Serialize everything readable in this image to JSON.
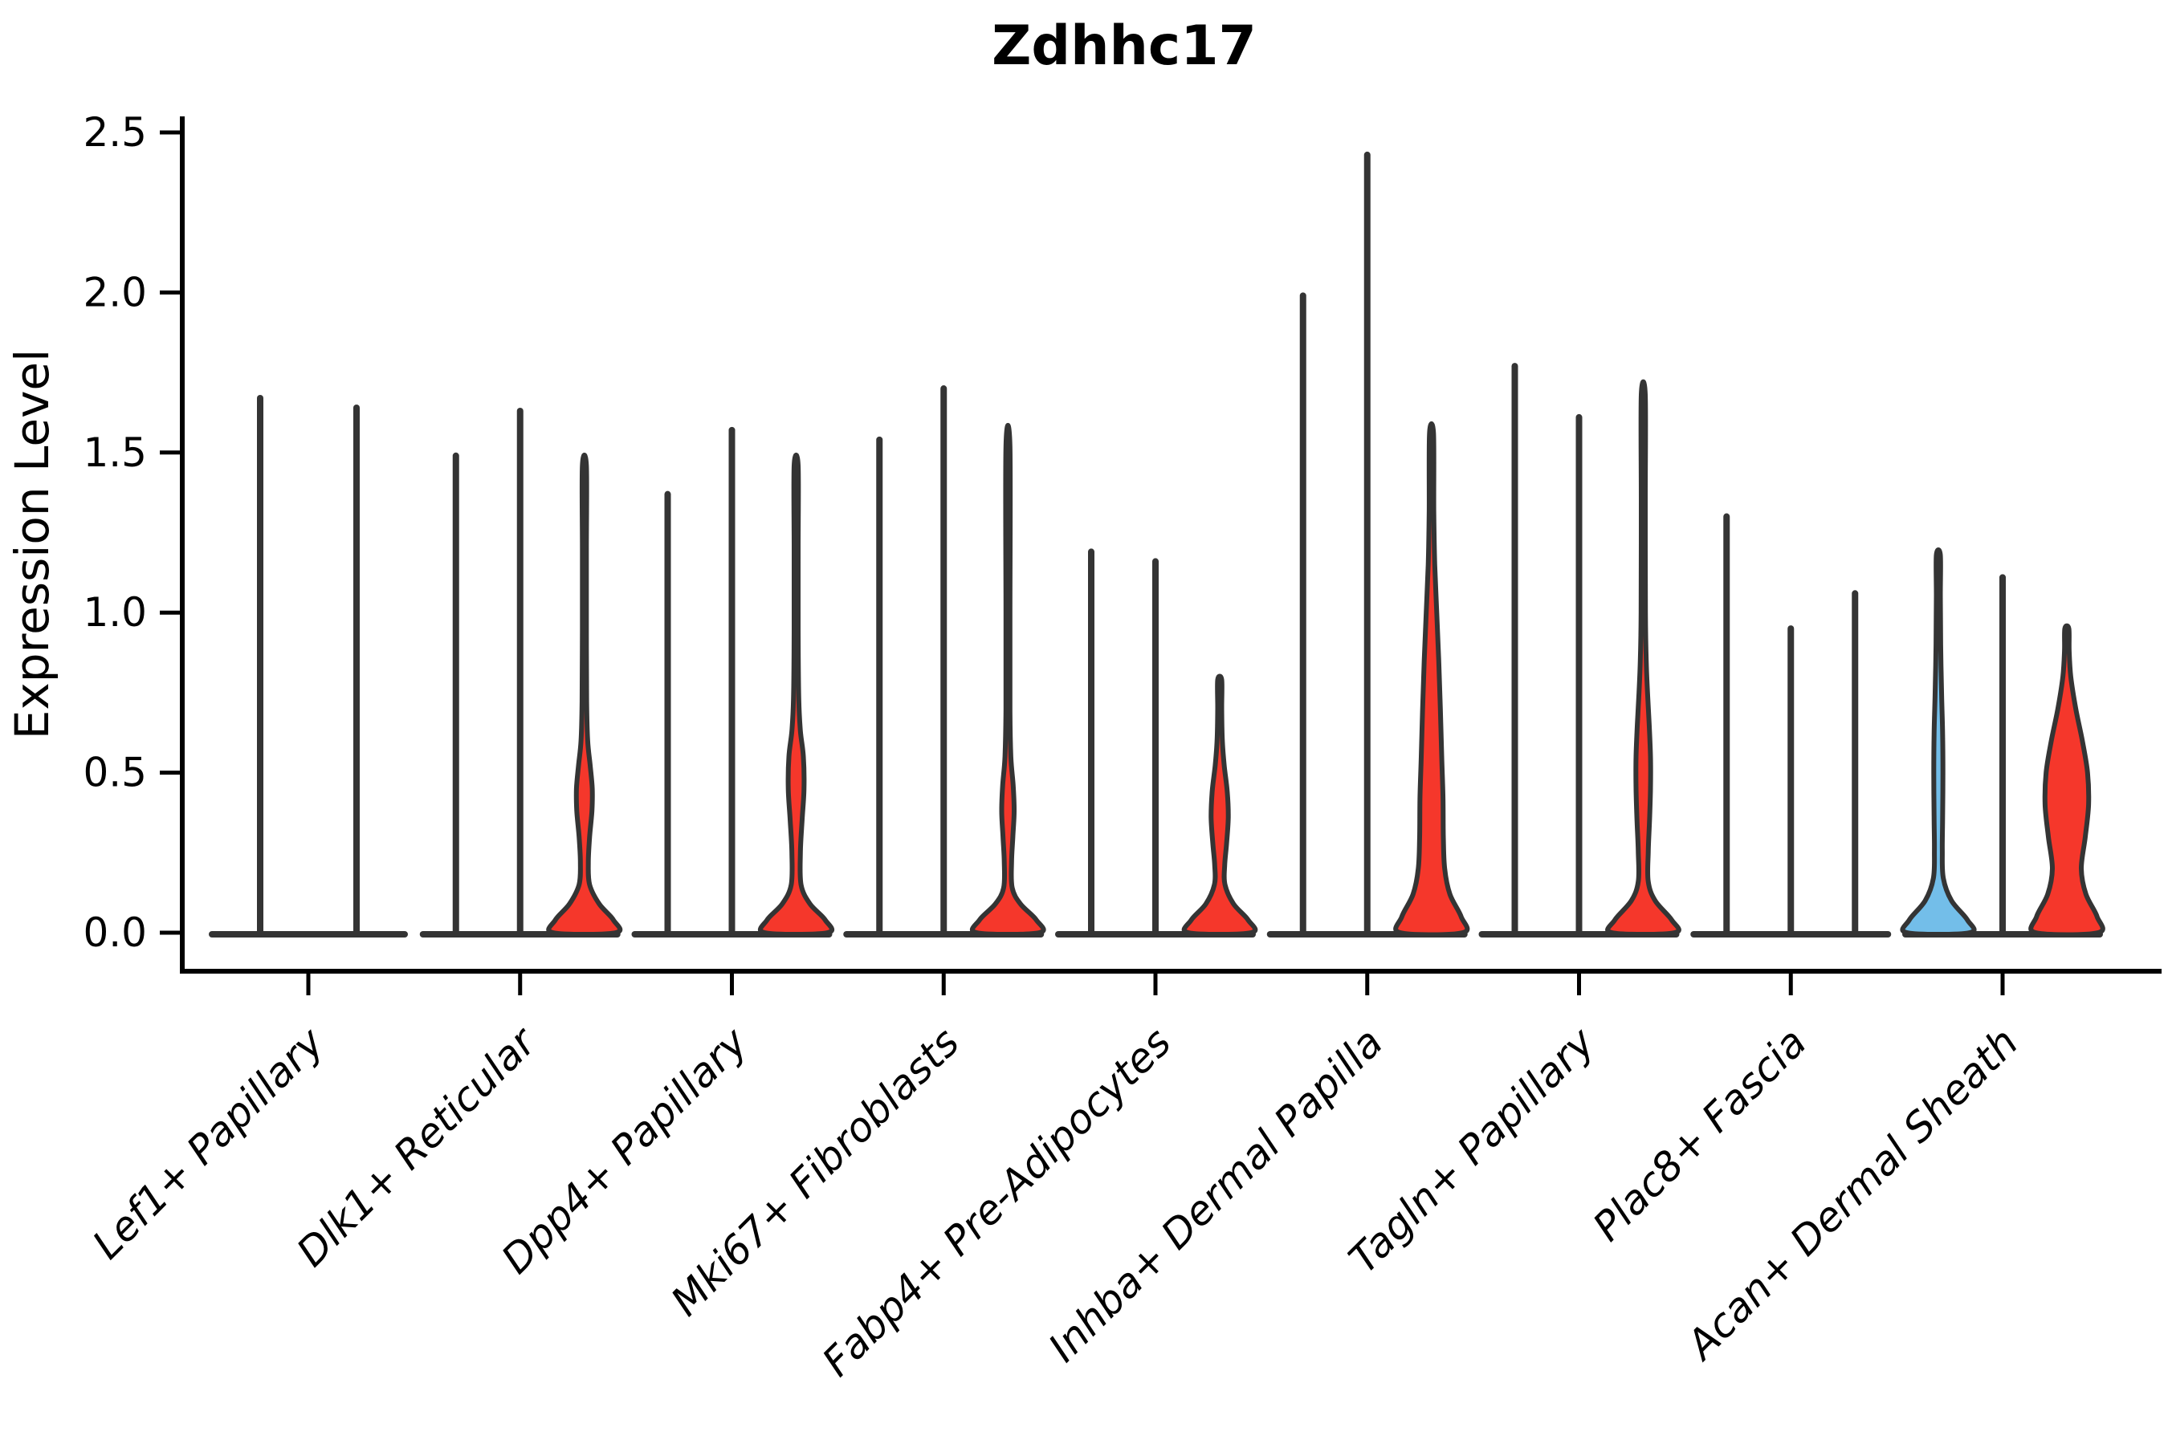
{
  "chart_data": {
    "type": "violin",
    "title": "Zdhhc17",
    "xlabel": "",
    "ylabel": "Expression Level",
    "ylim": [
      0,
      2.5
    ],
    "yticks": [
      0.0,
      0.5,
      1.0,
      1.5,
      2.0,
      2.5
    ],
    "grid": false,
    "legend": "none",
    "x_tick_rotation": 45,
    "colors": {
      "red_fill": "#f5372b",
      "blue_fill": "#73bee9",
      "edge": "#343434",
      "axis": "#000000",
      "background": "#ffffff"
    },
    "categories": [
      {
        "label": "Lef1+ Papillary",
        "violins": [
          {
            "style": "line",
            "max": 1.67
          },
          {
            "style": "line",
            "max": 1.64
          }
        ]
      },
      {
        "label": "Dlk1+ Reticular",
        "violins": [
          {
            "style": "line",
            "max": 1.49
          },
          {
            "style": "line",
            "max": 1.63
          },
          {
            "style": "filled",
            "color": "red",
            "max": 1.46,
            "profile": [
              [
                0,
                0.95
              ],
              [
                0.04,
                0.88
              ],
              [
                0.09,
                0.45
              ],
              [
                0.15,
                0.16
              ],
              [
                0.22,
                0.12
              ],
              [
                0.3,
                0.16
              ],
              [
                0.38,
                0.23
              ],
              [
                0.45,
                0.24
              ],
              [
                0.52,
                0.18
              ],
              [
                0.6,
                0.1
              ],
              [
                0.72,
                0.07
              ],
              [
                0.95,
                0.06
              ],
              [
                1.2,
                0.055
              ],
              [
                1.46,
                0.05
              ]
            ]
          }
        ]
      },
      {
        "label": "Dpp4+ Papillary",
        "violins": [
          {
            "style": "line",
            "max": 1.37
          },
          {
            "style": "line",
            "max": 1.57
          },
          {
            "style": "filled",
            "color": "red",
            "max": 1.46,
            "profile": [
              [
                0,
                0.95
              ],
              [
                0.04,
                0.88
              ],
              [
                0.09,
                0.42
              ],
              [
                0.15,
                0.15
              ],
              [
                0.25,
                0.13
              ],
              [
                0.35,
                0.18
              ],
              [
                0.45,
                0.24
              ],
              [
                0.55,
                0.22
              ],
              [
                0.63,
                0.13
              ],
              [
                0.73,
                0.08
              ],
              [
                0.95,
                0.06
              ],
              [
                1.2,
                0.055
              ],
              [
                1.46,
                0.05
              ]
            ]
          }
        ]
      },
      {
        "label": "Mki67+ Fibroblasts",
        "violins": [
          {
            "style": "line",
            "max": 1.54
          },
          {
            "style": "line",
            "max": 1.7
          },
          {
            "style": "filled",
            "color": "red",
            "max": 1.52,
            "profile": [
              [
                0,
                0.95
              ],
              [
                0.04,
                0.86
              ],
              [
                0.09,
                0.38
              ],
              [
                0.14,
                0.13
              ],
              [
                0.22,
                0.11
              ],
              [
                0.3,
                0.15
              ],
              [
                0.38,
                0.19
              ],
              [
                0.46,
                0.16
              ],
              [
                0.55,
                0.09
              ],
              [
                0.7,
                0.06
              ],
              [
                1.0,
                0.055
              ],
              [
                1.52,
                0.045
              ]
            ]
          }
        ]
      },
      {
        "label": "Fabp4+ Pre-Adipocytes",
        "violins": [
          {
            "style": "line",
            "max": 1.19
          },
          {
            "style": "line",
            "max": 1.16
          },
          {
            "style": "filled",
            "color": "red",
            "max": 0.79,
            "profile": [
              [
                0,
                0.95
              ],
              [
                0.04,
                0.86
              ],
              [
                0.09,
                0.42
              ],
              [
                0.15,
                0.16
              ],
              [
                0.21,
                0.15
              ],
              [
                0.28,
                0.21
              ],
              [
                0.36,
                0.26
              ],
              [
                0.44,
                0.23
              ],
              [
                0.52,
                0.14
              ],
              [
                0.6,
                0.08
              ],
              [
                0.7,
                0.06
              ],
              [
                0.79,
                0.05
              ]
            ]
          }
        ]
      },
      {
        "label": "Inhba+ Dermal Papilla",
        "violins": [
          {
            "style": "line",
            "max": 1.99
          },
          {
            "style": "line",
            "max": 2.43
          },
          {
            "style": "filled",
            "color": "red",
            "max": 1.56,
            "profile": [
              [
                0,
                0.95
              ],
              [
                0.05,
                0.9
              ],
              [
                0.12,
                0.56
              ],
              [
                0.2,
                0.4
              ],
              [
                0.3,
                0.36
              ],
              [
                0.42,
                0.35
              ],
              [
                0.55,
                0.31
              ],
              [
                0.7,
                0.27
              ],
              [
                0.85,
                0.22
              ],
              [
                1.0,
                0.16
              ],
              [
                1.15,
                0.1
              ],
              [
                1.32,
                0.07
              ],
              [
                1.56,
                0.05
              ]
            ]
          }
        ]
      },
      {
        "label": "Tagln+ Papillary",
        "violins": [
          {
            "style": "line",
            "max": 1.77
          },
          {
            "style": "line",
            "max": 1.61
          },
          {
            "style": "filled",
            "color": "red",
            "max": 1.68,
            "profile": [
              [
                0,
                0.95
              ],
              [
                0.04,
                0.86
              ],
              [
                0.1,
                0.36
              ],
              [
                0.16,
                0.15
              ],
              [
                0.25,
                0.15
              ],
              [
                0.35,
                0.19
              ],
              [
                0.45,
                0.22
              ],
              [
                0.55,
                0.22
              ],
              [
                0.65,
                0.18
              ],
              [
                0.75,
                0.13
              ],
              [
                0.85,
                0.09
              ],
              [
                1.0,
                0.065
              ],
              [
                1.35,
                0.055
              ],
              [
                1.68,
                0.045
              ]
            ]
          }
        ]
      },
      {
        "label": "Plac8+ Fascia",
        "violins": [
          {
            "style": "line",
            "max": 1.3
          },
          {
            "style": "line",
            "max": 0.95
          },
          {
            "style": "line",
            "max": 1.06
          }
        ]
      },
      {
        "label": "Acan+ Dermal Sheath",
        "violins": [
          {
            "style": "filled",
            "color": "blue",
            "max": 1.18,
            "profile": [
              [
                0,
                0.95
              ],
              [
                0.04,
                0.88
              ],
              [
                0.1,
                0.4
              ],
              [
                0.17,
                0.15
              ],
              [
                0.26,
                0.12
              ],
              [
                0.36,
                0.13
              ],
              [
                0.5,
                0.14
              ],
              [
                0.62,
                0.13
              ],
              [
                0.74,
                0.1
              ],
              [
                0.9,
                0.07
              ],
              [
                1.05,
                0.055
              ],
              [
                1.18,
                0.05
              ]
            ]
          },
          {
            "style": "line",
            "max": 1.11
          },
          {
            "style": "filled",
            "color": "red",
            "max": 0.95,
            "profile": [
              [
                0,
                0.95
              ],
              [
                0.05,
                0.92
              ],
              [
                0.12,
                0.58
              ],
              [
                0.2,
                0.44
              ],
              [
                0.3,
                0.56
              ],
              [
                0.4,
                0.66
              ],
              [
                0.5,
                0.63
              ],
              [
                0.6,
                0.47
              ],
              [
                0.7,
                0.27
              ],
              [
                0.8,
                0.12
              ],
              [
                0.88,
                0.07
              ],
              [
                0.95,
                0.05
              ]
            ]
          }
        ]
      }
    ]
  }
}
